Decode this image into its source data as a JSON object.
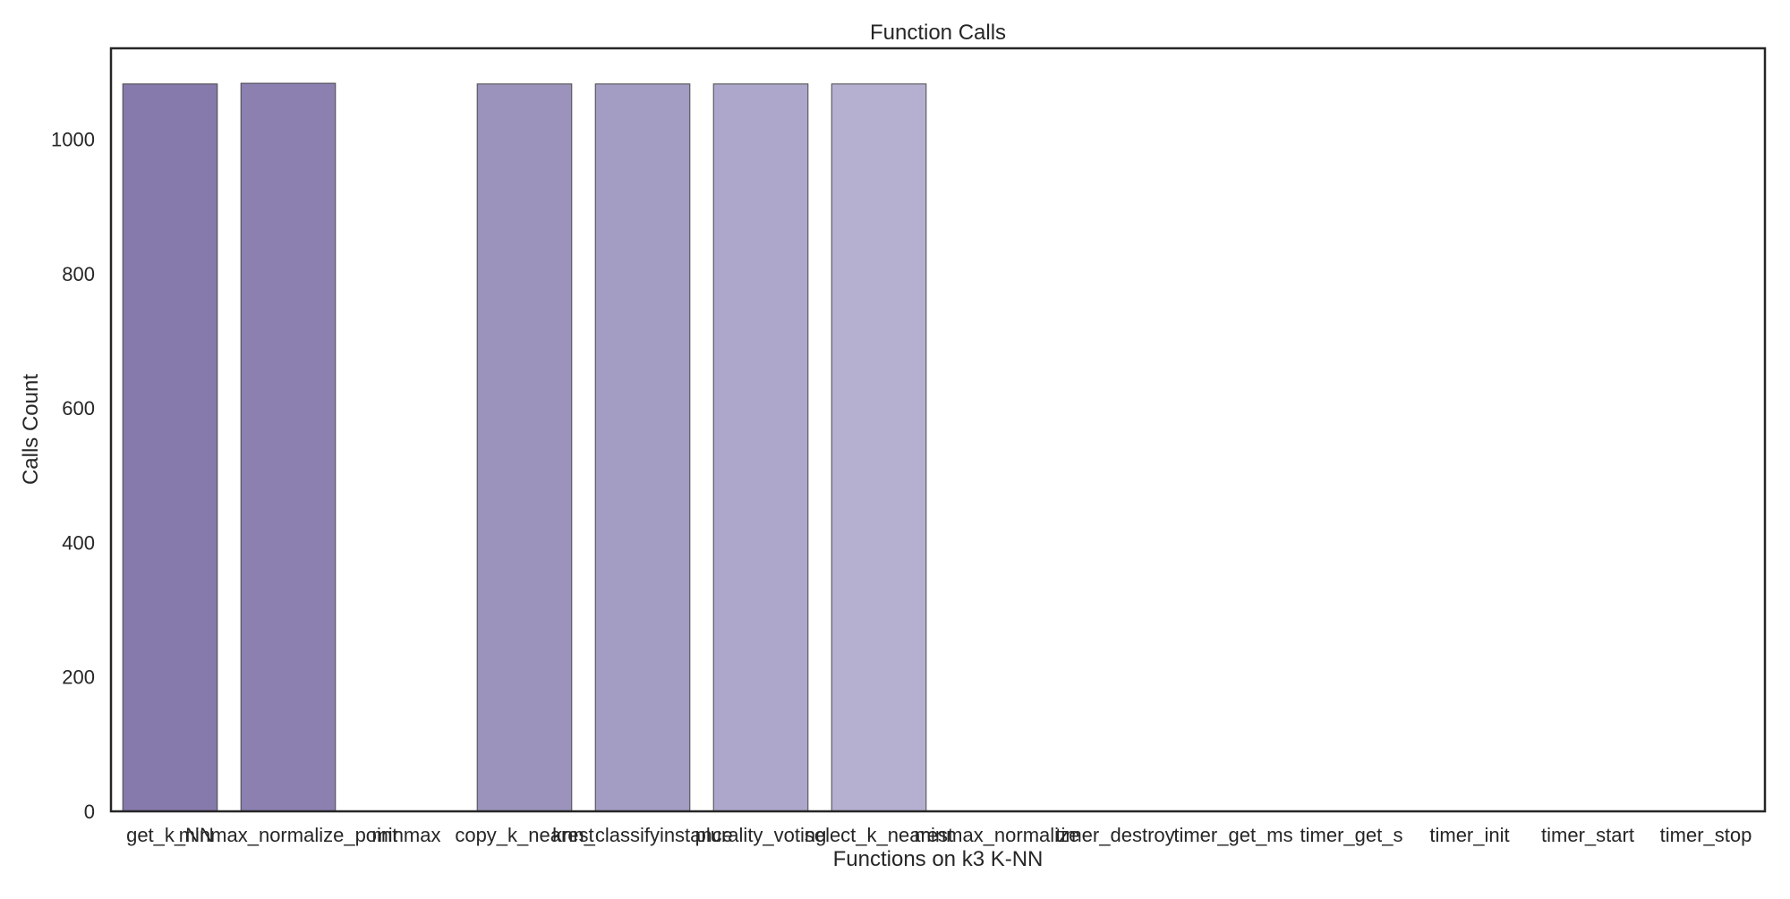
{
  "chart_data": {
    "type": "bar",
    "title": "Function Calls",
    "xlabel": "Functions on k3 K-NN",
    "ylabel": "Calls Count",
    "ylim": [
      0,
      1135
    ],
    "yticks": [
      0,
      200,
      400,
      600,
      800,
      1000
    ],
    "grid": false,
    "categories": [
      "get_k_NN",
      "minmax_normalize_point",
      "minmax",
      "copy_k_nearest",
      "knn_classifyinstance",
      "plurality_voting",
      "select_k_nearest",
      "minmax_normalize",
      "timer_destroy",
      "timer_get_ms",
      "timer_get_s",
      "timer_init",
      "timer_start",
      "timer_stop"
    ],
    "values": [
      1082,
      1083,
      0,
      1082,
      1082,
      1082,
      1082,
      0,
      0,
      0,
      0,
      0,
      0,
      0
    ],
    "colors": [
      "#8679ab",
      "#8b80b0",
      "#9188b5",
      "#9b93bb",
      "#a39cc3",
      "#ada7cb",
      "#b5b0d0",
      "#bcb7d5",
      "#c3bfda",
      "#cac7df",
      "#d2cfe4",
      "#d9d7e9",
      "#e0deed",
      "#e7e6f2"
    ],
    "bar_edge_color": "#4a4a4a"
  }
}
